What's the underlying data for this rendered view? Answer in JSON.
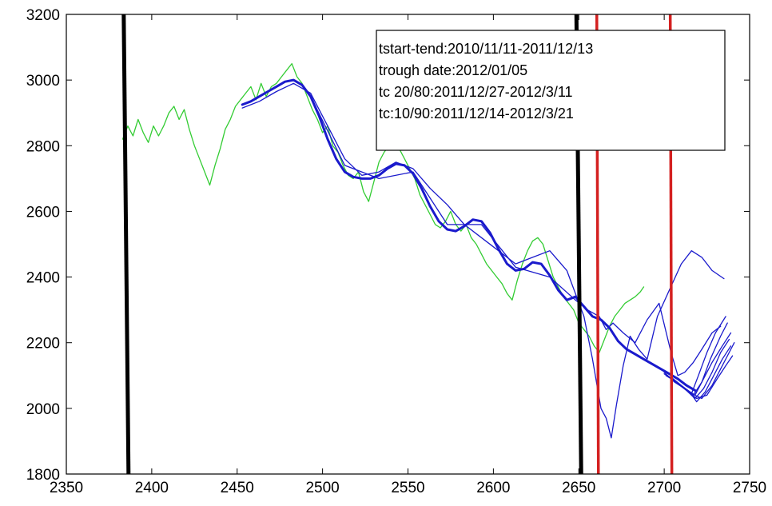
{
  "chart_data": {
    "type": "line",
    "xlim": [
      2350,
      2750
    ],
    "ylim": [
      1800,
      3200
    ],
    "xticks": [
      2350,
      2400,
      2450,
      2500,
      2550,
      2600,
      2650,
      2700,
      2750
    ],
    "yticks": [
      1800,
      2000,
      2200,
      2400,
      2600,
      2800,
      3000,
      3200
    ],
    "grid": false,
    "annotation_box": {
      "lines": [
        "tstart-tend:2010/11/11-2011/12/13",
        "trough date:2012/01/05",
        "tc 20/80:2011/12/27-2012/3/11",
        "tc:10/90:2011/12/14-2012/3/21"
      ],
      "placement": "top-right"
    },
    "vlines": [
      {
        "x": 2385,
        "color": "#000000",
        "style": "thick"
      },
      {
        "x": 2650,
        "color": "#000000",
        "style": "thick"
      },
      {
        "x": 2661,
        "color": "#d42020",
        "style": "medium"
      },
      {
        "x": 2704,
        "color": "#d42020",
        "style": "medium"
      }
    ],
    "series": [
      {
        "color": "#33cc33",
        "points": [
          [
            2383,
            2820
          ],
          [
            2386,
            2860
          ],
          [
            2389,
            2830
          ],
          [
            2392,
            2880
          ],
          [
            2395,
            2840
          ],
          [
            2398,
            2810
          ],
          [
            2401,
            2860
          ],
          [
            2404,
            2830
          ],
          [
            2407,
            2860
          ],
          [
            2410,
            2900
          ],
          [
            2413,
            2920
          ],
          [
            2416,
            2880
          ],
          [
            2419,
            2910
          ],
          [
            2422,
            2850
          ],
          [
            2425,
            2800
          ],
          [
            2428,
            2760
          ],
          [
            2431,
            2720
          ],
          [
            2434,
            2680
          ],
          [
            2437,
            2740
          ],
          [
            2440,
            2790
          ],
          [
            2443,
            2850
          ],
          [
            2446,
            2880
          ],
          [
            2449,
            2920
          ],
          [
            2452,
            2940
          ],
          [
            2455,
            2960
          ],
          [
            2458,
            2980
          ],
          [
            2461,
            2940
          ],
          [
            2464,
            2990
          ],
          [
            2467,
            2950
          ],
          [
            2470,
            2980
          ],
          [
            2473,
            2990
          ],
          [
            2476,
            3010
          ],
          [
            2479,
            3030
          ],
          [
            2482,
            3050
          ],
          [
            2485,
            3010
          ],
          [
            2488,
            2990
          ],
          [
            2491,
            2950
          ],
          [
            2494,
            2910
          ],
          [
            2497,
            2880
          ],
          [
            2500,
            2840
          ],
          [
            2503,
            2860
          ],
          [
            2506,
            2800
          ],
          [
            2509,
            2780
          ],
          [
            2512,
            2740
          ],
          [
            2515,
            2710
          ],
          [
            2518,
            2700
          ],
          [
            2521,
            2720
          ],
          [
            2524,
            2660
          ],
          [
            2527,
            2630
          ],
          [
            2530,
            2690
          ],
          [
            2533,
            2750
          ],
          [
            2536,
            2780
          ],
          [
            2539,
            2800
          ],
          [
            2542,
            2810
          ],
          [
            2545,
            2790
          ],
          [
            2548,
            2760
          ],
          [
            2551,
            2730
          ],
          [
            2554,
            2700
          ],
          [
            2557,
            2650
          ],
          [
            2560,
            2620
          ],
          [
            2563,
            2590
          ],
          [
            2566,
            2560
          ],
          [
            2569,
            2550
          ],
          [
            2572,
            2570
          ],
          [
            2575,
            2600
          ],
          [
            2578,
            2560
          ],
          [
            2581,
            2540
          ],
          [
            2584,
            2560
          ],
          [
            2587,
            2520
          ],
          [
            2590,
            2500
          ],
          [
            2593,
            2470
          ],
          [
            2596,
            2440
          ],
          [
            2599,
            2420
          ],
          [
            2602,
            2400
          ],
          [
            2605,
            2380
          ],
          [
            2608,
            2350
          ],
          [
            2611,
            2330
          ],
          [
            2614,
            2390
          ],
          [
            2617,
            2440
          ],
          [
            2620,
            2480
          ],
          [
            2623,
            2510
          ],
          [
            2626,
            2520
          ],
          [
            2629,
            2500
          ],
          [
            2632,
            2450
          ],
          [
            2635,
            2400
          ],
          [
            2638,
            2370
          ],
          [
            2641,
            2340
          ],
          [
            2644,
            2320
          ],
          [
            2647,
            2300
          ],
          [
            2650,
            2260
          ],
          [
            2653,
            2240
          ],
          [
            2656,
            2220
          ],
          [
            2659,
            2190
          ],
          [
            2662,
            2170
          ],
          [
            2665,
            2210
          ],
          [
            2668,
            2250
          ],
          [
            2671,
            2280
          ],
          [
            2674,
            2300
          ],
          [
            2677,
            2320
          ],
          [
            2680,
            2330
          ],
          [
            2683,
            2340
          ],
          [
            2686,
            2355
          ],
          [
            2688,
            2370
          ]
        ]
      },
      {
        "color": "#1a1acc",
        "points": [
          [
            2453,
            2925
          ],
          [
            2458,
            2935
          ],
          [
            2463,
            2950
          ],
          [
            2468,
            2965
          ],
          [
            2473,
            2980
          ],
          [
            2478,
            2995
          ],
          [
            2483,
            3000
          ],
          [
            2488,
            2985
          ],
          [
            2493,
            2950
          ],
          [
            2498,
            2890
          ],
          [
            2503,
            2820
          ],
          [
            2508,
            2760
          ],
          [
            2513,
            2720
          ],
          [
            2518,
            2705
          ],
          [
            2523,
            2700
          ],
          [
            2528,
            2700
          ],
          [
            2533,
            2710
          ],
          [
            2538,
            2730
          ],
          [
            2543,
            2745
          ],
          [
            2548,
            2740
          ],
          [
            2553,
            2715
          ],
          [
            2558,
            2670
          ],
          [
            2563,
            2615
          ],
          [
            2568,
            2570
          ],
          [
            2573,
            2545
          ],
          [
            2578,
            2540
          ],
          [
            2583,
            2555
          ],
          [
            2588,
            2575
          ],
          [
            2593,
            2570
          ],
          [
            2598,
            2535
          ],
          [
            2603,
            2485
          ],
          [
            2608,
            2440
          ],
          [
            2613,
            2420
          ],
          [
            2618,
            2425
          ],
          [
            2623,
            2445
          ],
          [
            2628,
            2440
          ],
          [
            2633,
            2405
          ],
          [
            2638,
            2360
          ],
          [
            2643,
            2330
          ],
          [
            2648,
            2340
          ],
          [
            2653,
            2310
          ],
          [
            2658,
            2280
          ],
          [
            2663,
            2270
          ],
          [
            2668,
            2245
          ],
          [
            2673,
            2205
          ],
          [
            2678,
            2180
          ],
          [
            2683,
            2165
          ],
          [
            2688,
            2150
          ],
          [
            2693,
            2135
          ],
          [
            2698,
            2120
          ],
          [
            2703,
            2105
          ],
          [
            2708,
            2090
          ],
          [
            2713,
            2070
          ],
          [
            2718,
            2055
          ]
        ]
      },
      {
        "color": "#1a1acc",
        "points": [
          [
            2453,
            2915
          ],
          [
            2463,
            2935
          ],
          [
            2473,
            2965
          ],
          [
            2483,
            2990
          ],
          [
            2493,
            2960
          ],
          [
            2503,
            2860
          ],
          [
            2513,
            2760
          ],
          [
            2523,
            2710
          ],
          [
            2533,
            2720
          ],
          [
            2543,
            2750
          ],
          [
            2553,
            2730
          ],
          [
            2563,
            2670
          ],
          [
            2573,
            2620
          ],
          [
            2583,
            2560
          ],
          [
            2593,
            2520
          ],
          [
            2603,
            2480
          ],
          [
            2613,
            2440
          ],
          [
            2623,
            2460
          ],
          [
            2633,
            2480
          ],
          [
            2643,
            2420
          ],
          [
            2653,
            2280
          ],
          [
            2658,
            2150
          ],
          [
            2663,
            2000
          ],
          [
            2666,
            1970
          ],
          [
            2669,
            1910
          ],
          [
            2672,
            2010
          ],
          [
            2676,
            2130
          ],
          [
            2680,
            2220
          ],
          [
            2685,
            2180
          ],
          [
            2690,
            2150
          ],
          [
            2696,
            2280
          ],
          [
            2703,
            2360
          ],
          [
            2710,
            2440
          ],
          [
            2716,
            2480
          ],
          [
            2722,
            2460
          ],
          [
            2728,
            2420
          ],
          [
            2735,
            2395
          ]
        ]
      },
      {
        "color": "#1a1acc",
        "points": [
          [
            2493,
            2950
          ],
          [
            2513,
            2740
          ],
          [
            2533,
            2700
          ],
          [
            2553,
            2720
          ],
          [
            2573,
            2560
          ],
          [
            2593,
            2560
          ],
          [
            2613,
            2430
          ],
          [
            2633,
            2400
          ],
          [
            2648,
            2330
          ],
          [
            2655,
            2300
          ],
          [
            2662,
            2280
          ],
          [
            2666,
            2240
          ],
          [
            2670,
            2260
          ],
          [
            2676,
            2230
          ],
          [
            2683,
            2200
          ],
          [
            2690,
            2270
          ],
          [
            2697,
            2320
          ],
          [
            2704,
            2170
          ],
          [
            2708,
            2100
          ],
          [
            2712,
            2110
          ],
          [
            2717,
            2140
          ],
          [
            2722,
            2180
          ],
          [
            2728,
            2230
          ],
          [
            2733,
            2250
          ]
        ]
      },
      {
        "color": "#1a1acc",
        "points": [
          [
            2700,
            2110
          ],
          [
            2706,
            2080
          ],
          [
            2712,
            2060
          ],
          [
            2717,
            2040
          ],
          [
            2722,
            2080
          ],
          [
            2727,
            2150
          ],
          [
            2733,
            2220
          ],
          [
            2737,
            2260
          ]
        ]
      },
      {
        "color": "#1a1acc",
        "points": [
          [
            2702,
            2100
          ],
          [
            2708,
            2075
          ],
          [
            2713,
            2055
          ],
          [
            2718,
            2030
          ],
          [
            2723,
            2060
          ],
          [
            2728,
            2110
          ],
          [
            2733,
            2170
          ],
          [
            2738,
            2210
          ]
        ]
      },
      {
        "color": "#1a1acc",
        "points": [
          [
            2704,
            2095
          ],
          [
            2710,
            2070
          ],
          [
            2715,
            2050
          ],
          [
            2719,
            2020
          ],
          [
            2724,
            2050
          ],
          [
            2729,
            2100
          ],
          [
            2734,
            2150
          ],
          [
            2739,
            2190
          ]
        ]
      },
      {
        "color": "#1a1acc",
        "points": [
          [
            2700,
            2105
          ],
          [
            2706,
            2085
          ],
          [
            2711,
            2065
          ],
          [
            2716,
            2045
          ],
          [
            2720,
            2100
          ],
          [
            2725,
            2170
          ],
          [
            2730,
            2230
          ],
          [
            2736,
            2280
          ]
        ]
      },
      {
        "color": "#1a1acc",
        "points": [
          [
            2703,
            2095
          ],
          [
            2709,
            2072
          ],
          [
            2714,
            2050
          ],
          [
            2719,
            2030
          ],
          [
            2725,
            2040
          ],
          [
            2731,
            2090
          ],
          [
            2736,
            2130
          ],
          [
            2740,
            2160
          ]
        ]
      },
      {
        "color": "#1a1acc",
        "points": [
          [
            2705,
            2090
          ],
          [
            2711,
            2065
          ],
          [
            2716,
            2045
          ],
          [
            2722,
            2030
          ],
          [
            2728,
            2070
          ],
          [
            2733,
            2120
          ],
          [
            2738,
            2170
          ],
          [
            2741,
            2200
          ]
        ]
      },
      {
        "color": "#1a1acc",
        "points": [
          [
            2701,
            2100
          ],
          [
            2707,
            2080
          ],
          [
            2713,
            2058
          ],
          [
            2718,
            2040
          ],
          [
            2723,
            2090
          ],
          [
            2728,
            2140
          ],
          [
            2734,
            2190
          ],
          [
            2739,
            2230
          ]
        ]
      }
    ]
  }
}
